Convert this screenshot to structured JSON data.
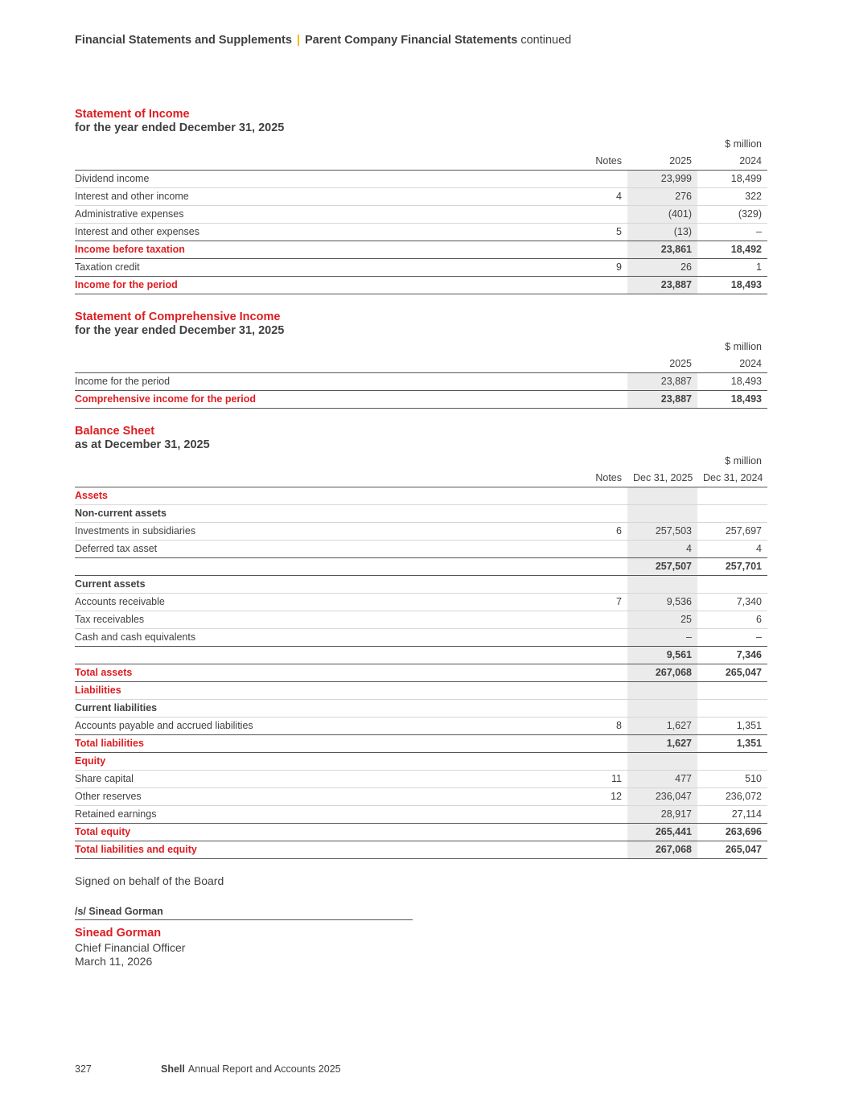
{
  "header": {
    "section": "Financial Statements and Supplements",
    "separator": "|",
    "subsection": "Parent Company Financial Statements",
    "continued": "continued"
  },
  "income_statement": {
    "title": "Statement of Income",
    "subtitle": "for the year ended December 31, 2025",
    "unit": "$ million",
    "col_notes": "Notes",
    "col_current": "2025",
    "col_prior": "2024",
    "rows": [
      {
        "label": "Dividend income",
        "notes": "",
        "current": "23,999",
        "prior": "18,499"
      },
      {
        "label": "Interest and other income",
        "notes": "4",
        "current": "276",
        "prior": "322"
      },
      {
        "label": "Administrative expenses",
        "notes": "",
        "current": "(401)",
        "prior": "(329)"
      },
      {
        "label": "Interest and other expenses",
        "notes": "5",
        "current": "(13)",
        "prior": "–"
      },
      {
        "label": "Income before taxation",
        "notes": "",
        "current": "23,861",
        "prior": "18,492"
      },
      {
        "label": "Taxation credit",
        "notes": "9",
        "current": "26",
        "prior": "1"
      },
      {
        "label": "Income for the period",
        "notes": "",
        "current": "23,887",
        "prior": "18,493"
      }
    ]
  },
  "comprehensive_income": {
    "title": "Statement of Comprehensive Income",
    "subtitle": "for the year ended December 31, 2025",
    "unit": "$ million",
    "col_current": "2025",
    "col_prior": "2024",
    "rows": [
      {
        "label": "Income for the period",
        "current": "23,887",
        "prior": "18,493"
      },
      {
        "label": "Comprehensive income for the period",
        "current": "23,887",
        "prior": "18,493"
      }
    ]
  },
  "balance_sheet": {
    "title": "Balance Sheet",
    "subtitle": "as at December 31, 2025",
    "unit": "$ million",
    "col_notes": "Notes",
    "col_current": "Dec 31, 2025",
    "col_prior": "Dec 31, 2024",
    "rows": [
      {
        "label": "Assets",
        "notes": "",
        "current": "",
        "prior": ""
      },
      {
        "label": "Non-current assets",
        "notes": "",
        "current": "",
        "prior": ""
      },
      {
        "label": "Investments in subsidiaries",
        "notes": "6",
        "current": "257,503",
        "prior": "257,697"
      },
      {
        "label": "Deferred tax asset",
        "notes": "",
        "current": "4",
        "prior": "4"
      },
      {
        "label": "",
        "notes": "",
        "current": "257,507",
        "prior": "257,701"
      },
      {
        "label": "Current assets",
        "notes": "",
        "current": "",
        "prior": ""
      },
      {
        "label": "Accounts receivable",
        "notes": "7",
        "current": "9,536",
        "prior": "7,340"
      },
      {
        "label": "Tax receivables",
        "notes": "",
        "current": "25",
        "prior": "6"
      },
      {
        "label": "Cash and cash equivalents",
        "notes": "",
        "current": "–",
        "prior": "–"
      },
      {
        "label": "",
        "notes": "",
        "current": "9,561",
        "prior": "7,346"
      },
      {
        "label": "Total assets",
        "notes": "",
        "current": "267,068",
        "prior": "265,047"
      },
      {
        "label": "Liabilities",
        "notes": "",
        "current": "",
        "prior": ""
      },
      {
        "label": "Current liabilities",
        "notes": "",
        "current": "",
        "prior": ""
      },
      {
        "label": "Accounts payable and accrued liabilities",
        "notes": "8",
        "current": "1,627",
        "prior": "1,351"
      },
      {
        "label": "Total liabilities",
        "notes": "",
        "current": "1,627",
        "prior": "1,351"
      },
      {
        "label": "Equity",
        "notes": "",
        "current": "",
        "prior": ""
      },
      {
        "label": "Share capital",
        "notes": "11",
        "current": "477",
        "prior": "510"
      },
      {
        "label": "Other reserves",
        "notes": "12",
        "current": "236,047",
        "prior": "236,072"
      },
      {
        "label": "Retained earnings",
        "notes": "",
        "current": "28,917",
        "prior": "27,114"
      },
      {
        "label": "Total equity",
        "notes": "",
        "current": "265,441",
        "prior": "263,696"
      },
      {
        "label": "Total liabilities and equity",
        "notes": "",
        "current": "267,068",
        "prior": "265,047"
      }
    ]
  },
  "signature": {
    "signed_text": "Signed on behalf of the Board",
    "signature_line": "/s/ Sinead Gorman",
    "name": "Sinead Gorman",
    "role": "Chief Financial Officer",
    "date": "March 11, 2026"
  },
  "footer": {
    "page_number": "327",
    "brand": "Shell",
    "publication": "Annual Report and Accounts 2025"
  },
  "colors": {
    "accent_red": "#dd1d21",
    "accent_yellow": "#f5b400",
    "text": "#404040",
    "shaded_column": "#ebebeb"
  }
}
